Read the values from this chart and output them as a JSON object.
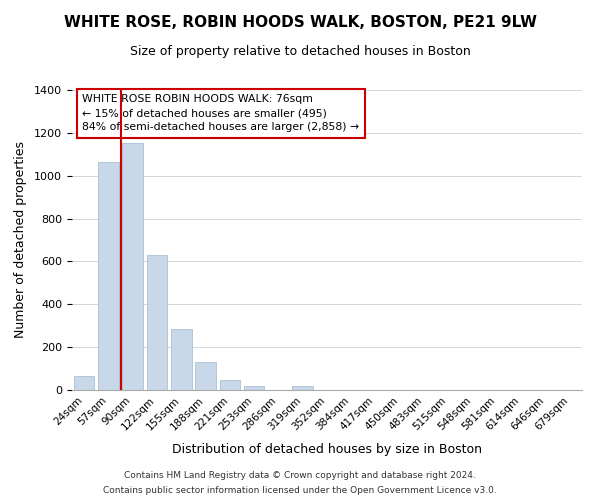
{
  "title": "WHITE ROSE, ROBIN HOODS WALK, BOSTON, PE21 9LW",
  "subtitle": "Size of property relative to detached houses in Boston",
  "xlabel": "Distribution of detached houses by size in Boston",
  "ylabel": "Number of detached properties",
  "bar_color": "#c8d8e8",
  "bar_edge_color": "#a0b8d0",
  "categories": [
    "24sqm",
    "57sqm",
    "90sqm",
    "122sqm",
    "155sqm",
    "188sqm",
    "221sqm",
    "253sqm",
    "286sqm",
    "319sqm",
    "352sqm",
    "384sqm",
    "417sqm",
    "450sqm",
    "483sqm",
    "515sqm",
    "548sqm",
    "581sqm",
    "614sqm",
    "646sqm",
    "679sqm"
  ],
  "values": [
    65,
    1065,
    1155,
    630,
    285,
    130,
    48,
    18,
    0,
    18,
    0,
    0,
    0,
    0,
    0,
    0,
    0,
    0,
    0,
    0,
    0
  ],
  "ylim": [
    0,
    1400
  ],
  "yticks": [
    0,
    200,
    400,
    600,
    800,
    1000,
    1200,
    1400
  ],
  "property_label": "WHITE ROSE ROBIN HOODS WALK: 76sqm",
  "annotation_line1": "← 15% of detached houses are smaller (495)",
  "annotation_line2": "84% of semi-detached houses are larger (2,858) →",
  "footer_line1": "Contains HM Land Registry data © Crown copyright and database right 2024.",
  "footer_line2": "Contains public sector information licensed under the Open Government Licence v3.0.",
  "background_color": "#ffffff",
  "grid_color": "#d0d8e0",
  "property_line_color": "#cc0000"
}
